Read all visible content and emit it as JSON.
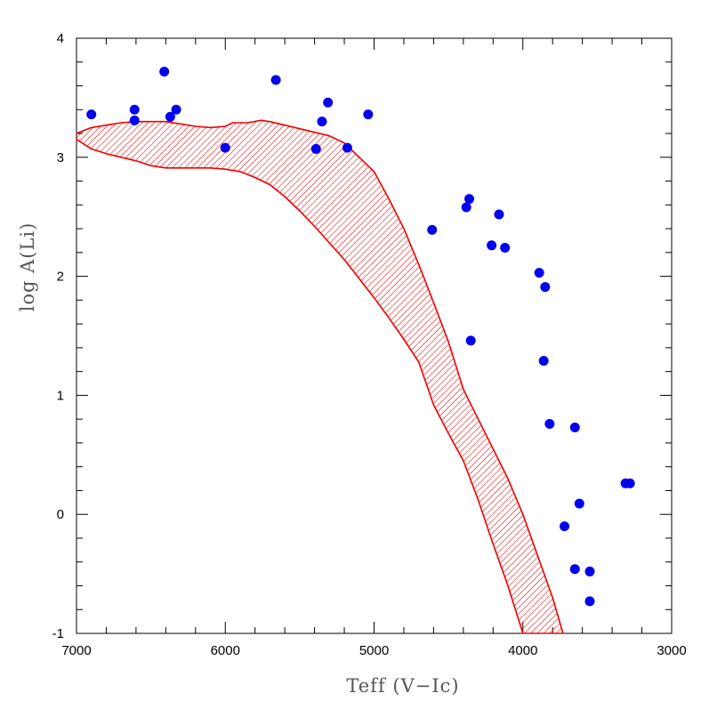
{
  "chart_data": {
    "type": "scatter",
    "xlabel": "Teff (V−Ic)",
    "ylabel": "log A(Li)",
    "xlim": [
      7000,
      3000
    ],
    "ylim": [
      -1,
      4
    ],
    "x_reversed": true,
    "x_ticks": [
      7000,
      6000,
      5000,
      4000,
      3000
    ],
    "x_tick_labels": [
      "7000",
      "6000",
      "5000",
      "4000",
      "3000"
    ],
    "y_ticks": [
      -1,
      0,
      1,
      2,
      3,
      4
    ],
    "y_tick_labels": [
      "-1",
      "0",
      "1",
      "2",
      "3",
      "4"
    ],
    "grid": false,
    "colors": {
      "points": "#0000ee",
      "band": "#ee0000"
    },
    "band": {
      "upper": [
        [
          7000,
          3.2
        ],
        [
          6900,
          3.25
        ],
        [
          6700,
          3.29
        ],
        [
          6600,
          3.3
        ],
        [
          6400,
          3.3
        ],
        [
          6300,
          3.28
        ],
        [
          6200,
          3.26
        ],
        [
          6100,
          3.25
        ],
        [
          6000,
          3.26
        ],
        [
          5950,
          3.29
        ],
        [
          5850,
          3.29
        ],
        [
          5760,
          3.31
        ],
        [
          5700,
          3.3
        ],
        [
          5500,
          3.24
        ],
        [
          5300,
          3.18
        ],
        [
          5200,
          3.12
        ],
        [
          5100,
          3.0
        ],
        [
          5000,
          2.88
        ],
        [
          4900,
          2.65
        ],
        [
          4800,
          2.4
        ],
        [
          4700,
          2.1
        ],
        [
          4600,
          1.78
        ],
        [
          4500,
          1.45
        ],
        [
          4400,
          1.05
        ],
        [
          4300,
          0.8
        ],
        [
          4200,
          0.55
        ],
        [
          4100,
          0.3
        ],
        [
          4000,
          0.0
        ],
        [
          3900,
          -0.35
        ],
        [
          3800,
          -0.7
        ],
        [
          3730,
          -1.0
        ]
      ],
      "lower": [
        [
          7000,
          3.15
        ],
        [
          6900,
          3.07
        ],
        [
          6800,
          3.03
        ],
        [
          6600,
          2.97
        ],
        [
          6500,
          2.93
        ],
        [
          6400,
          2.91
        ],
        [
          6200,
          2.91
        ],
        [
          6100,
          2.91
        ],
        [
          6000,
          2.9
        ],
        [
          5900,
          2.88
        ],
        [
          5800,
          2.83
        ],
        [
          5700,
          2.77
        ],
        [
          5600,
          2.67
        ],
        [
          5500,
          2.55
        ],
        [
          5400,
          2.42
        ],
        [
          5300,
          2.28
        ],
        [
          5200,
          2.14
        ],
        [
          5100,
          1.98
        ],
        [
          5000,
          1.82
        ],
        [
          4900,
          1.65
        ],
        [
          4800,
          1.47
        ],
        [
          4700,
          1.28
        ],
        [
          4600,
          0.92
        ],
        [
          4500,
          0.68
        ],
        [
          4400,
          0.45
        ],
        [
          4300,
          0.12
        ],
        [
          4200,
          -0.25
        ],
        [
          4100,
          -0.6
        ],
        [
          4000,
          -1.0
        ]
      ]
    },
    "points": [
      {
        "x": 6900,
        "y": 3.36
      },
      {
        "x": 6610,
        "y": 3.4
      },
      {
        "x": 6610,
        "y": 3.31
      },
      {
        "x": 6410,
        "y": 3.72
      },
      {
        "x": 6370,
        "y": 3.34
      },
      {
        "x": 6330,
        "y": 3.4
      },
      {
        "x": 6000,
        "y": 3.08
      },
      {
        "x": 5660,
        "y": 3.65
      },
      {
        "x": 5390,
        "y": 3.07
      },
      {
        "x": 5350,
        "y": 3.3
      },
      {
        "x": 5310,
        "y": 3.46
      },
      {
        "x": 5180,
        "y": 3.08
      },
      {
        "x": 5040,
        "y": 3.36
      },
      {
        "x": 4610,
        "y": 2.39
      },
      {
        "x": 4380,
        "y": 2.58
      },
      {
        "x": 4360,
        "y": 2.65
      },
      {
        "x": 4350,
        "y": 1.46
      },
      {
        "x": 4210,
        "y": 2.26
      },
      {
        "x": 4160,
        "y": 2.52
      },
      {
        "x": 4120,
        "y": 2.24
      },
      {
        "x": 3890,
        "y": 2.03
      },
      {
        "x": 3850,
        "y": 1.91
      },
      {
        "x": 3860,
        "y": 1.29
      },
      {
        "x": 3820,
        "y": 0.76
      },
      {
        "x": 3650,
        "y": 0.73
      },
      {
        "x": 3620,
        "y": 0.09
      },
      {
        "x": 3720,
        "y": -0.1
      },
      {
        "x": 3650,
        "y": -0.46
      },
      {
        "x": 3550,
        "y": -0.48
      },
      {
        "x": 3550,
        "y": -0.73
      },
      {
        "x": 3310,
        "y": 0.26
      },
      {
        "x": 3280,
        "y": 0.26
      }
    ]
  }
}
